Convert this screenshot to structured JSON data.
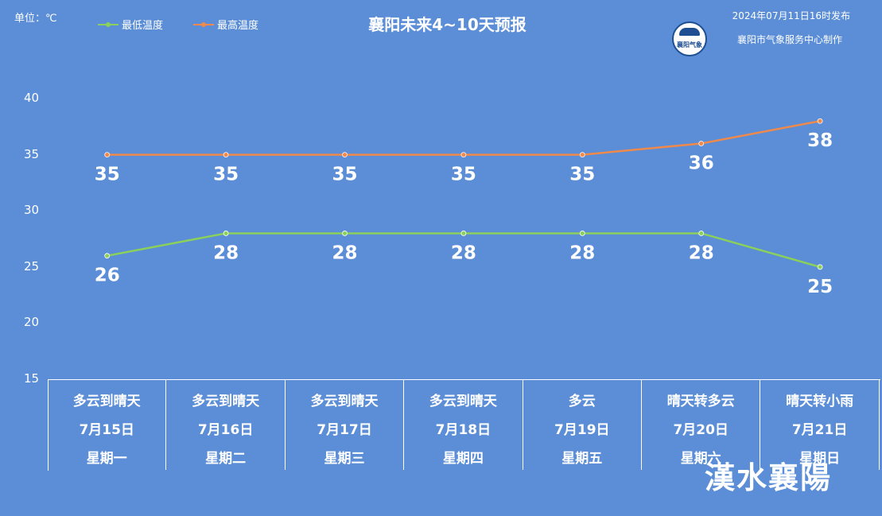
{
  "header": {
    "unit_label": "单位：℃",
    "title": "襄阳未来4~10天预报",
    "issued": "2024年07月11日16时发布",
    "maker": "襄阳市气象服务中心制作",
    "logo_text": "襄阳气象"
  },
  "watermark": "漢水襄陽",
  "chart_data": {
    "type": "line",
    "title": "襄阳未来4~10天预报",
    "ylim": [
      15,
      40
    ],
    "yticks": [
      "15",
      "20",
      "25",
      "30",
      "35",
      "40"
    ],
    "legend_placement": "top-left",
    "categories": [
      "7月15日",
      "7月16日",
      "7月17日",
      "7月18日",
      "7月19日",
      "7月20日",
      "7月21日"
    ],
    "weekdays": [
      "星期一",
      "星期二",
      "星期三",
      "星期四",
      "星期五",
      "星期六",
      "星期日"
    ],
    "weather": [
      "多云到晴天",
      "多云到晴天",
      "多云到晴天",
      "多云到晴天",
      "多云",
      "晴天转多云",
      "晴天转小雨"
    ],
    "series": [
      {
        "name": "最低温度",
        "color": "#8BD05A",
        "values": [
          26,
          28,
          28,
          28,
          28,
          28,
          25
        ]
      },
      {
        "name": "最高温度",
        "color": "#F0894A",
        "values": [
          35,
          35,
          35,
          35,
          35,
          36,
          38
        ]
      }
    ]
  },
  "colors": {
    "background": "#5B8ED6",
    "low": "#8BD05A",
    "high": "#F0894A"
  }
}
